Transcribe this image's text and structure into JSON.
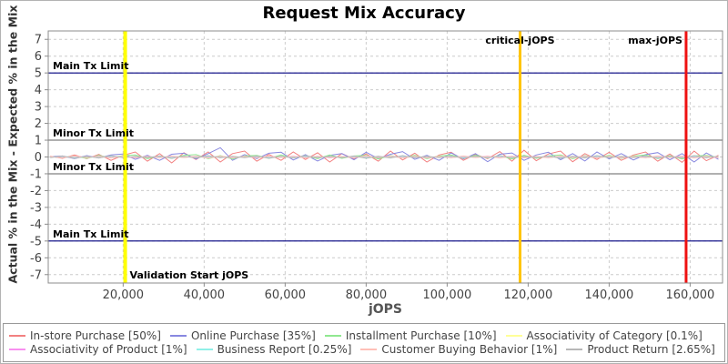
{
  "title": "Request Mix Accuracy",
  "axes": {
    "x": {
      "label": "jOPS",
      "ticks": [
        20000,
        40000,
        60000,
        80000,
        100000,
        120000,
        140000,
        160000
      ],
      "tick_labels": [
        "20,000",
        "40,000",
        "60,000",
        "80,000",
        "100,000",
        "120,000",
        "140,000",
        "160,000"
      ],
      "min": 1500,
      "max": 168000
    },
    "y": {
      "label": "Actual % in the Mix - Expected % in the Mix",
      "ticks": [
        7,
        6,
        5,
        4,
        3,
        2,
        1,
        0,
        -1,
        -2,
        -3,
        -4,
        -5,
        -6,
        -7
      ],
      "min": -7.5,
      "max": 7.5
    }
  },
  "limit_lines": [
    {
      "label": "Main Tx Limit",
      "value": 5,
      "color": "#000080"
    },
    {
      "label": "Minor Tx Limit",
      "value": 1,
      "color": "#808080"
    },
    {
      "label": "Minor Tx Limit",
      "value": -1,
      "color": "#808080"
    },
    {
      "label": "Main Tx Limit",
      "value": -5,
      "color": "#000080"
    }
  ],
  "event_lines": [
    {
      "label": "Validation Start jOPS",
      "value": 20500,
      "color": "#ffff00",
      "width": 4,
      "label_pos": "bottom",
      "anchor": "start"
    },
    {
      "label": "critical-jOPS",
      "value": 118000,
      "color": "#ffc400",
      "width": 3,
      "label_pos": "top",
      "anchor": "middle"
    },
    {
      "label": "max-jOPS",
      "value": 159000,
      "color": "#ee1111",
      "width": 3,
      "label_pos": "top",
      "anchor": "end"
    }
  ],
  "legend": {
    "rows": [
      [
        0,
        1,
        2,
        3
      ],
      [
        4,
        5,
        6,
        7
      ]
    ]
  },
  "chart_data": {
    "type": "line",
    "title": "Request Mix Accuracy",
    "xlabel": "jOPS",
    "ylabel": "Actual % in the Mix - Expected % in the Mix",
    "xlim": [
      1500,
      168000
    ],
    "ylim": [
      -7.5,
      7.5
    ],
    "grid": "dashed",
    "legend_position": "bottom",
    "x": [
      2000,
      5000,
      8000,
      11000,
      14000,
      17000,
      20000,
      23000,
      26000,
      29000,
      32000,
      35000,
      38000,
      41000,
      44000,
      47000,
      50000,
      53000,
      56000,
      59000,
      62000,
      65000,
      68000,
      71000,
      74000,
      77000,
      80000,
      83000,
      86000,
      89000,
      92000,
      95000,
      98000,
      101000,
      104000,
      107000,
      110000,
      113000,
      116000,
      119000,
      122000,
      125000,
      128000,
      131000,
      134000,
      137000,
      140000,
      143000,
      146000,
      149000,
      152000,
      155000,
      158000,
      161000,
      164000,
      167000
    ],
    "series": [
      {
        "name": "In-store Purchase [50%]",
        "color": "#f28080",
        "values": [
          0.05,
          -0.08,
          0.12,
          -0.1,
          0.15,
          -0.2,
          0.1,
          0.3,
          -0.25,
          0.2,
          -0.35,
          0.25,
          -0.15,
          0.3,
          -0.3,
          0.2,
          0.35,
          -0.25,
          0.15,
          -0.2,
          0.3,
          -0.15,
          0.25,
          -0.3,
          0.2,
          -0.12,
          0.18,
          -0.25,
          0.35,
          -0.18,
          0.22,
          -0.3,
          0.12,
          0.28,
          -0.2,
          0.15,
          -0.1,
          0.32,
          -0.25,
          0.4,
          -0.22,
          0.18,
          0.35,
          -0.28,
          0.2,
          -0.15,
          0.28,
          -0.2,
          0.12,
          0.3,
          -0.25,
          0.18,
          -0.32,
          0.35,
          -0.22,
          0.1
        ]
      },
      {
        "name": "Online Purchase [35%]",
        "color": "#8888e0",
        "values": [
          0.02,
          0.06,
          -0.1,
          0.08,
          -0.06,
          0.12,
          0.18,
          -0.14,
          0.1,
          -0.2,
          0.16,
          0.22,
          -0.12,
          0.2,
          0.55,
          -0.2,
          0.14,
          -0.1,
          0.22,
          0.28,
          -0.18,
          0.14,
          -0.24,
          0.1,
          0.2,
          -0.16,
          0.28,
          -0.1,
          0.16,
          0.32,
          -0.14,
          0.1,
          -0.2,
          0.24,
          -0.12,
          0.2,
          -0.28,
          0.16,
          0.24,
          -0.2,
          0.12,
          0.28,
          -0.16,
          0.2,
          -0.24,
          0.3,
          -0.12,
          0.2,
          -0.18,
          0.14,
          0.26,
          -0.16,
          0.2,
          -0.3,
          0.24,
          -0.14
        ]
      },
      {
        "name": "Installment Purchase [10%]",
        "color": "#90e890",
        "values": [
          0.02,
          -0.04,
          0.06,
          -0.08,
          0.1,
          -0.06,
          0.08,
          0.12,
          -0.1,
          0.06,
          -0.08,
          0.1,
          0.14,
          -0.1,
          0.08,
          -0.12,
          0.06,
          0.1,
          -0.08,
          0.12,
          -0.06,
          0.08,
          -0.1,
          0.12,
          -0.08,
          0.06,
          0.1,
          -0.12,
          0.08,
          -0.06,
          0.1,
          -0.1,
          0.06,
          0.12,
          -0.08,
          0.1,
          -0.06,
          0.08,
          -0.12,
          0.1,
          -0.08,
          0.06,
          0.12,
          -0.1,
          0.08,
          -0.06,
          0.1,
          -0.08,
          0.06,
          0.12,
          -0.1,
          0.08,
          -0.12,
          0.06,
          0.1,
          -0.04
        ]
      },
      {
        "name": "Associativity of Category [0.1%]",
        "color": "#ffff99",
        "values": [
          0.01,
          -0.02,
          0.02,
          -0.01,
          0.03,
          -0.03,
          0.02,
          -0.02,
          0.01,
          -0.02,
          0.02,
          -0.01,
          0.03,
          -0.03,
          0.02,
          -0.02,
          0.01,
          -0.02,
          0.02,
          -0.01,
          0.03,
          -0.03,
          0.02,
          -0.02,
          0.01,
          -0.02,
          0.02,
          -0.01,
          0.03,
          -0.03,
          0.02,
          -0.02,
          0.01,
          -0.02,
          0.02,
          -0.01,
          0.03,
          -0.03,
          0.02,
          -0.02,
          0.01,
          -0.02,
          0.02,
          -0.01,
          0.03,
          -0.03,
          0.02,
          -0.02,
          0.01,
          -0.02,
          0.02,
          -0.01,
          0.03,
          -0.03,
          0.02,
          -0.02
        ]
      },
      {
        "name": "Associativity of Product [1%]",
        "color": "#f890f0",
        "values": [
          0.02,
          -0.03,
          0.04,
          -0.02,
          0.05,
          -0.04,
          0.03,
          -0.05,
          0.02,
          -0.03,
          0.04,
          -0.02,
          0.05,
          -0.04,
          0.03,
          -0.05,
          0.02,
          -0.03,
          0.04,
          -0.02,
          0.05,
          -0.04,
          0.03,
          -0.05,
          0.02,
          -0.03,
          0.04,
          -0.02,
          0.05,
          -0.04,
          0.03,
          -0.05,
          0.02,
          -0.03,
          0.04,
          -0.02,
          0.05,
          -0.04,
          0.03,
          -0.05,
          0.02,
          -0.03,
          0.04,
          -0.02,
          0.05,
          -0.04,
          0.03,
          -0.05,
          0.02,
          -0.03,
          0.04,
          -0.02,
          0.05,
          -0.04,
          0.03,
          -0.05
        ]
      },
      {
        "name": "Business Report [0.25%]",
        "color": "#90f0e8",
        "values": [
          -0.01,
          0.03,
          -0.04,
          0.02,
          -0.03,
          0.04,
          -0.02,
          0.01,
          -0.01,
          0.03,
          -0.04,
          0.02,
          -0.03,
          0.04,
          -0.02,
          0.01,
          -0.01,
          0.03,
          -0.04,
          0.02,
          -0.03,
          0.04,
          -0.02,
          0.01,
          -0.01,
          0.03,
          -0.04,
          0.02,
          -0.03,
          0.04,
          -0.02,
          0.01,
          -0.01,
          0.03,
          -0.04,
          0.02,
          -0.03,
          0.04,
          -0.02,
          0.01,
          -0.01,
          0.03,
          -0.04,
          0.02,
          -0.03,
          0.04,
          -0.02,
          0.01,
          -0.01,
          0.03,
          -0.04,
          0.02,
          -0.03,
          0.04,
          -0.02,
          0.01
        ]
      },
      {
        "name": "Customer Buying Behavior [1%]",
        "color": "#ffc0b8",
        "values": [
          0.03,
          -0.05,
          0.06,
          -0.03,
          0.04,
          -0.06,
          0.05,
          -0.04,
          0.03,
          -0.05,
          0.06,
          -0.03,
          0.04,
          -0.06,
          0.05,
          -0.04,
          0.03,
          -0.05,
          0.06,
          -0.03,
          0.04,
          -0.06,
          0.05,
          -0.04,
          0.03,
          -0.05,
          0.06,
          -0.03,
          0.04,
          -0.06,
          0.05,
          -0.04,
          0.03,
          -0.05,
          0.06,
          -0.03,
          0.04,
          -0.06,
          0.05,
          -0.04,
          0.03,
          -0.05,
          0.06,
          -0.03,
          0.04,
          -0.06,
          0.05,
          -0.04,
          0.03,
          -0.05,
          0.06,
          -0.03,
          0.04,
          -0.06,
          0.05,
          -0.04
        ]
      },
      {
        "name": "Product Return [2.65%]",
        "color": "#b8b8b8",
        "values": [
          -0.04,
          0.06,
          -0.08,
          0.05,
          -0.06,
          0.08,
          -0.05,
          0.04,
          -0.04,
          0.06,
          -0.08,
          0.05,
          -0.06,
          0.08,
          -0.05,
          0.04,
          -0.04,
          0.06,
          -0.08,
          0.05,
          -0.06,
          0.08,
          -0.05,
          0.04,
          -0.04,
          0.06,
          -0.08,
          0.05,
          -0.06,
          0.08,
          -0.05,
          0.04,
          -0.04,
          0.06,
          -0.08,
          0.05,
          -0.06,
          0.08,
          -0.05,
          0.04,
          -0.04,
          0.06,
          -0.08,
          0.05,
          -0.06,
          0.08,
          -0.05,
          0.04,
          -0.04,
          0.06,
          -0.08,
          0.05,
          -0.06,
          0.08,
          -0.05,
          0.04
        ]
      }
    ]
  }
}
